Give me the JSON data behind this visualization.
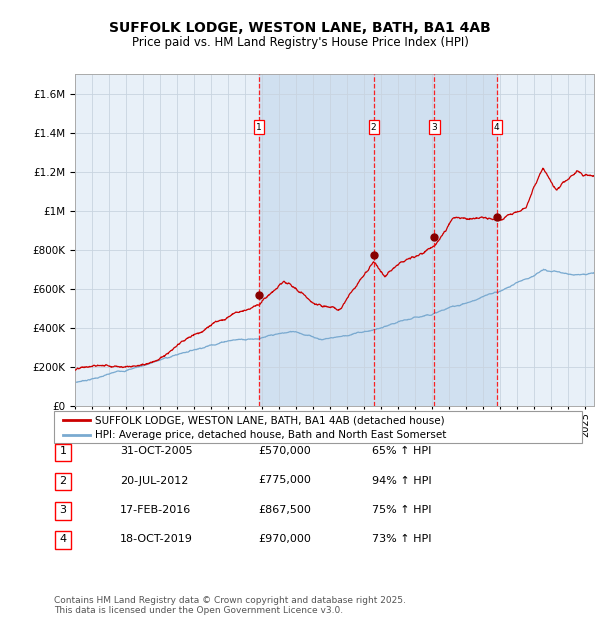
{
  "title": "SUFFOLK LODGE, WESTON LANE, BATH, BA1 4AB",
  "subtitle": "Price paid vs. HM Land Registry's House Price Index (HPI)",
  "red_label": "SUFFOLK LODGE, WESTON LANE, BATH, BA1 4AB (detached house)",
  "blue_label": "HPI: Average price, detached house, Bath and North East Somerset",
  "footer": "Contains HM Land Registry data © Crown copyright and database right 2025.\nThis data is licensed under the Open Government Licence v3.0.",
  "transactions": [
    {
      "num": 1,
      "date": "31-OCT-2005",
      "price": 570000,
      "hpi_pct": "65% ↑ HPI",
      "year": 2005.83
    },
    {
      "num": 2,
      "date": "20-JUL-2012",
      "price": 775000,
      "hpi_pct": "94% ↑ HPI",
      "year": 2012.55
    },
    {
      "num": 3,
      "date": "17-FEB-2016",
      "price": 867500,
      "hpi_pct": "75% ↑ HPI",
      "year": 2016.12
    },
    {
      "num": 4,
      "date": "18-OCT-2019",
      "price": 970000,
      "hpi_pct": "73% ↑ HPI",
      "year": 2019.79
    }
  ],
  "ylim": [
    0,
    1700000
  ],
  "xlim_start": 1995,
  "xlim_end": 2025.5,
  "background_color": "#ffffff",
  "plot_bg_color": "#e8f0f8",
  "grid_color": "#c8d4e0",
  "red_color": "#cc0000",
  "blue_color": "#7aaad0",
  "shade_color": "#d0e0f0",
  "marker_color": "#880000",
  "title_fontsize": 10,
  "subtitle_fontsize": 8.5,
  "tick_fontsize": 7,
  "ytick_fontsize": 7.5,
  "legend_fontsize": 7.5,
  "table_fontsize": 8,
  "footer_fontsize": 6.5
}
